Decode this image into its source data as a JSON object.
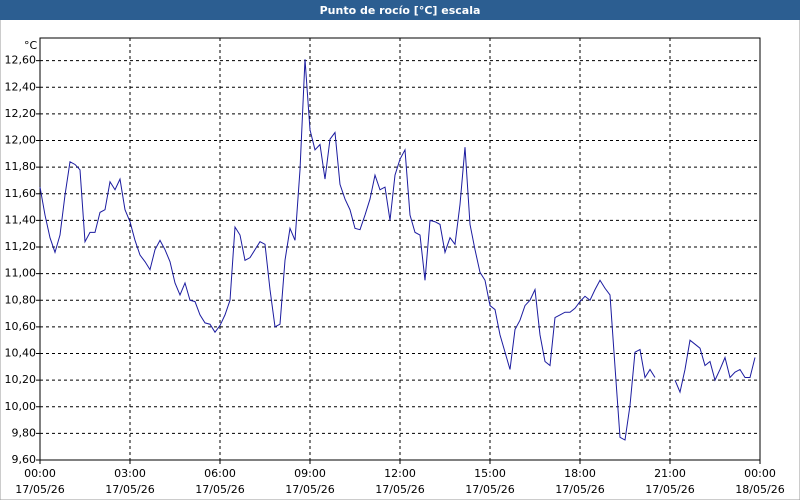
{
  "chart_data": {
    "type": "line",
    "title": "Punto de rocío [°C] escala",
    "y_label": "°C",
    "x": [
      0,
      10,
      20,
      30,
      40,
      50,
      60,
      70,
      80,
      90,
      100,
      110,
      120,
      130,
      140,
      150,
      160,
      170,
      180,
      190,
      200,
      210,
      220,
      230,
      240,
      250,
      260,
      270,
      280,
      290,
      300,
      310,
      320,
      330,
      340,
      350,
      360,
      370,
      380,
      390,
      400,
      410,
      420,
      430,
      440,
      450,
      460,
      470,
      480,
      490,
      500,
      510,
      520,
      530,
      540,
      550,
      560,
      570,
      580,
      590,
      600,
      610,
      620,
      630,
      640,
      650,
      660,
      670,
      680,
      690,
      700,
      710,
      720,
      730,
      740,
      750,
      760,
      770,
      780,
      790,
      800,
      810,
      820,
      830,
      840,
      850,
      860,
      870,
      880,
      890,
      900,
      910,
      920,
      930,
      940,
      950,
      960,
      970,
      980,
      990,
      1000,
      1010,
      1020,
      1030,
      1040,
      1050,
      1060,
      1070,
      1080,
      1090,
      1100,
      1110,
      1120,
      1130,
      1140,
      1150,
      1160,
      1170,
      1180,
      1190,
      1200,
      1210,
      1220,
      1230,
      1250,
      1270,
      1280,
      1290,
      1300,
      1310,
      1320,
      1330,
      1340,
      1350,
      1360,
      1370,
      1380,
      1390,
      1400,
      1410,
      1420,
      1430
    ],
    "series": [
      {
        "name": "Punto de rocío",
        "color": "#1c1ca0",
        "values": [
          11.65,
          11.44,
          11.27,
          11.16,
          11.29,
          11.59,
          11.84,
          11.82,
          11.78,
          11.24,
          11.31,
          11.31,
          11.46,
          11.48,
          11.69,
          11.63,
          11.71,
          11.48,
          11.39,
          11.25,
          11.14,
          11.09,
          11.03,
          11.18,
          11.25,
          11.18,
          11.09,
          10.93,
          10.84,
          10.93,
          10.8,
          10.79,
          10.69,
          10.63,
          10.62,
          10.56,
          10.61,
          10.69,
          10.8,
          11.35,
          11.29,
          11.1,
          11.12,
          11.18,
          11.24,
          11.22,
          10.88,
          10.6,
          10.62,
          11.1,
          11.34,
          11.25,
          11.78,
          12.61,
          12.08,
          11.93,
          11.97,
          11.71,
          12.01,
          12.06,
          11.67,
          11.56,
          11.48,
          11.34,
          11.33,
          11.44,
          11.56,
          11.74,
          11.63,
          11.65,
          11.4,
          11.74,
          11.86,
          11.93,
          11.44,
          11.31,
          11.29,
          10.95,
          11.4,
          11.39,
          11.37,
          11.16,
          11.27,
          11.22,
          11.52,
          11.95,
          11.37,
          11.18,
          11.01,
          10.95,
          10.76,
          10.73,
          10.54,
          10.41,
          10.28,
          10.58,
          10.65,
          10.76,
          10.8,
          10.88,
          10.54,
          10.34,
          10.31,
          10.67,
          10.69,
          10.71,
          10.71,
          10.74,
          10.79,
          10.83,
          10.8,
          10.88,
          10.95,
          10.89,
          10.84,
          10.3,
          9.77,
          9.75,
          10.01,
          10.41,
          10.43,
          10.22,
          10.28,
          10.22,
          null,
          10.2,
          10.11,
          10.28,
          10.5,
          10.47,
          10.44,
          10.31,
          10.34,
          10.2,
          10.28,
          10.37,
          10.22,
          10.26,
          10.28,
          10.22,
          10.22,
          10.37
        ]
      }
    ],
    "xlim": [
      0,
      1440
    ],
    "xticks": [
      {
        "value": 0,
        "label": "00:00",
        "date": "17/05/26"
      },
      {
        "value": 180,
        "label": "03:00",
        "date": "17/05/26"
      },
      {
        "value": 360,
        "label": "06:00",
        "date": "17/05/26"
      },
      {
        "value": 540,
        "label": "09:00",
        "date": "17/05/26"
      },
      {
        "value": 720,
        "label": "12:00",
        "date": "17/05/26"
      },
      {
        "value": 900,
        "label": "15:00",
        "date": "17/05/26"
      },
      {
        "value": 1080,
        "label": "18:00",
        "date": "17/05/26"
      },
      {
        "value": 1260,
        "label": "21:00",
        "date": "17/05/26"
      },
      {
        "value": 1440,
        "label": "00:00",
        "date": "18/05/26"
      }
    ],
    "ylim": [
      9.6,
      12.77
    ],
    "yticks": [
      {
        "value": 9.6,
        "label": "9,60"
      },
      {
        "value": 9.8,
        "label": "9,80"
      },
      {
        "value": 10.0,
        "label": "10,00"
      },
      {
        "value": 10.2,
        "label": "10,20"
      },
      {
        "value": 10.4,
        "label": "10,40"
      },
      {
        "value": 10.6,
        "label": "10,60"
      },
      {
        "value": 10.8,
        "label": "10,80"
      },
      {
        "value": 11.0,
        "label": "11,00"
      },
      {
        "value": 11.2,
        "label": "11,20"
      },
      {
        "value": 11.4,
        "label": "11,40"
      },
      {
        "value": 11.6,
        "label": "11,60"
      },
      {
        "value": 11.8,
        "label": "11,80"
      },
      {
        "value": 12.0,
        "label": "12,00"
      },
      {
        "value": 12.2,
        "label": "12,20"
      },
      {
        "value": 12.4,
        "label": "12,40"
      },
      {
        "value": 12.6,
        "label": "12,60"
      }
    ],
    "grid": true
  }
}
